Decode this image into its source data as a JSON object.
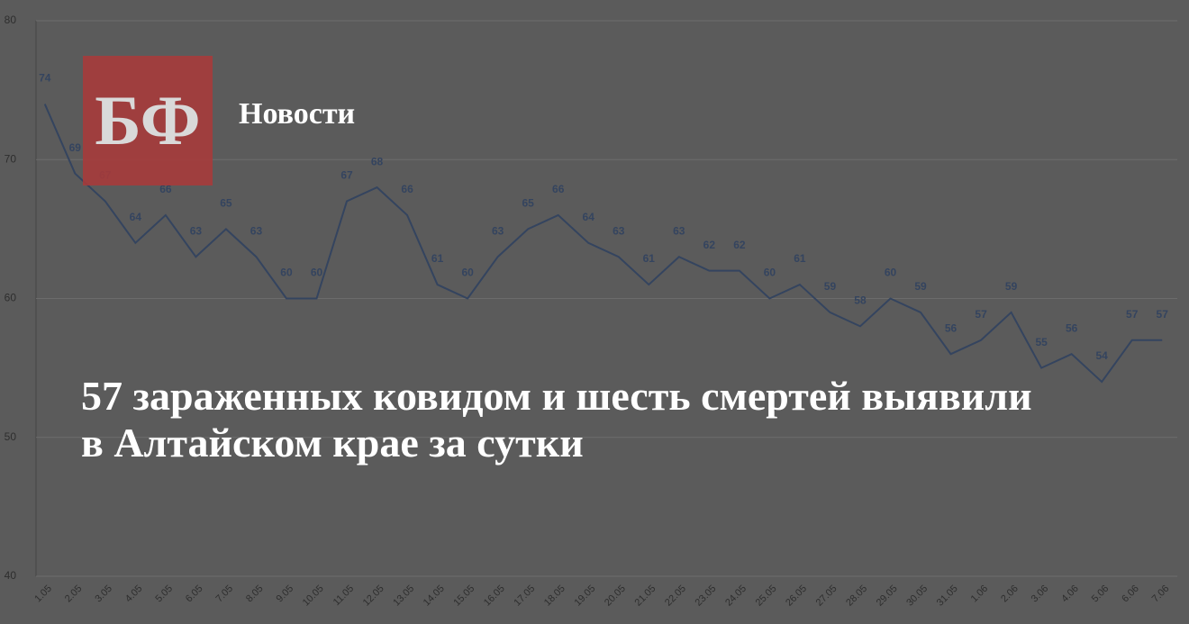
{
  "logo": "БФ",
  "section": "Новости",
  "headline": "57 зараженных ковидом и шесть смертей выявили в Алтайском крае за сутки",
  "chart_data": {
    "type": "line",
    "color": "#34445f",
    "categories": [
      "1.05",
      "2.05",
      "3.05",
      "4.05",
      "5.05",
      "6.05",
      "7.05",
      "8.05",
      "9.05",
      "10.05",
      "11.05",
      "12.05",
      "13.05",
      "14.05",
      "15.05",
      "16.05",
      "17.05",
      "18.05",
      "19.05",
      "20.05",
      "21.05",
      "22.05",
      "23.05",
      "24.05",
      "25.05",
      "26.05",
      "27.05",
      "28.05",
      "29.05",
      "30.05",
      "31.05",
      "1.06",
      "2.06",
      "3.06",
      "4.06",
      "5.06",
      "6.06",
      "7.06"
    ],
    "values": [
      74,
      69,
      67,
      64,
      66,
      63,
      65,
      63,
      60,
      60,
      67,
      68,
      66,
      61,
      60,
      63,
      65,
      66,
      64,
      63,
      61,
      63,
      62,
      62,
      60,
      61,
      59,
      58,
      60,
      59,
      56,
      57,
      59,
      55,
      56,
      54,
      57,
      57
    ],
    "ylim": [
      40,
      80
    ],
    "yticks": [
      40,
      50,
      60,
      70,
      80
    ],
    "grid": true
  }
}
